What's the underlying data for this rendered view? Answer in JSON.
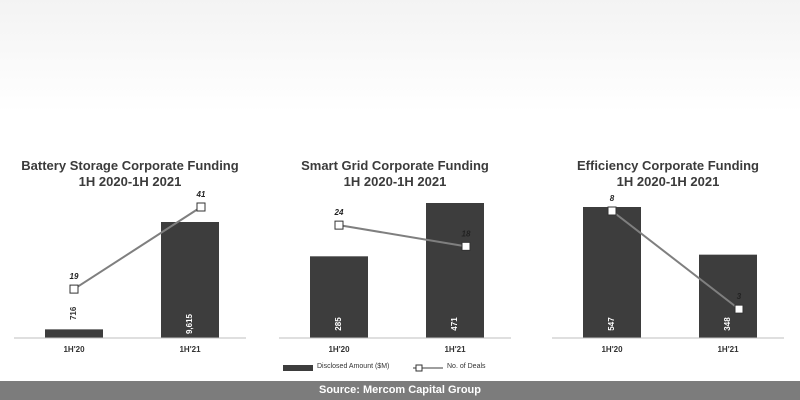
{
  "colors": {
    "bar": "#3d3d3d",
    "line": "#7f7f7f",
    "marker_fill": "#ffffff",
    "marker_stroke": "#333333",
    "axis": "#bfbfbf",
    "footer_bg": "#7c7c7c"
  },
  "legend": {
    "bar_label": "Disclosed Amount ($M)",
    "line_label": "No. of Deals"
  },
  "footer": {
    "source": "Source: Mercom Capital Group"
  },
  "chart_data": [
    {
      "type": "bar+line",
      "title": "Battery Storage  Corporate Funding",
      "subtitle": "1H 2020-1H 2021",
      "categories": [
        "1H'20",
        "1H'21"
      ],
      "series": [
        {
          "name": "Disclosed Amount ($M)",
          "type": "bar",
          "values": [
            716,
            9615
          ],
          "labels": [
            "716",
            "9,615"
          ]
        },
        {
          "name": "No. of Deals",
          "type": "line",
          "values": [
            19,
            41
          ],
          "labels": [
            "19",
            "41"
          ]
        }
      ]
    },
    {
      "type": "bar+line",
      "title": "Smart Grid Corporate Funding",
      "subtitle": "1H 2020-1H 2021",
      "categories": [
        "1H'20",
        "1H'21"
      ],
      "series": [
        {
          "name": "Disclosed Amount ($M)",
          "type": "bar",
          "values": [
            285,
            471
          ],
          "labels": [
            "285",
            "471"
          ]
        },
        {
          "name": "No. of Deals",
          "type": "line",
          "values": [
            24,
            18
          ],
          "labels": [
            "24",
            "18"
          ]
        }
      ]
    },
    {
      "type": "bar+line",
      "title": "Efficiency  Corporate Funding",
      "subtitle": "1H 2020-1H 2021",
      "categories": [
        "1H'20",
        "1H'21"
      ],
      "series": [
        {
          "name": "Disclosed Amount ($M)",
          "type": "bar",
          "values": [
            547,
            348
          ],
          "labels": [
            "547",
            "348"
          ]
        },
        {
          "name": "No. of Deals",
          "type": "line",
          "values": [
            8,
            3
          ],
          "labels": [
            "8",
            "3"
          ]
        }
      ]
    }
  ]
}
